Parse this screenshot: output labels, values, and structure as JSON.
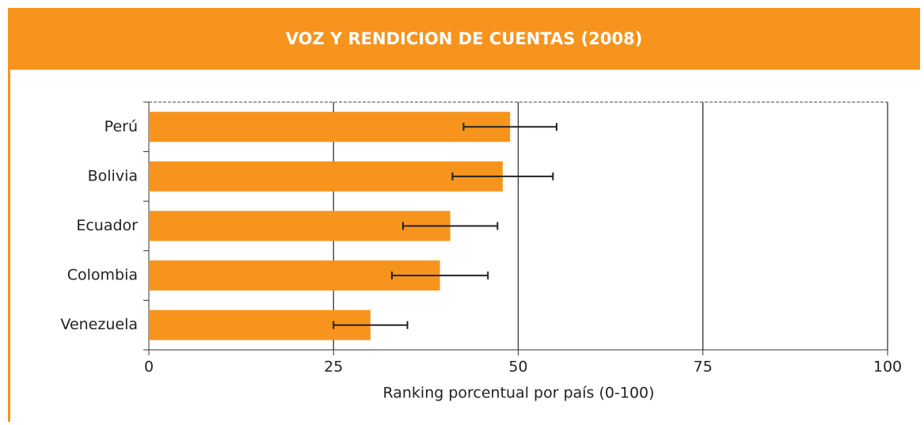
{
  "chart_data": {
    "type": "bar",
    "orientation": "horizontal",
    "title": "VOZ Y RENDICION DE CUENTAS (2008)",
    "x_label": "Ranking porcentual por país (0-100)",
    "categories": [
      "Perú",
      "Bolivia",
      "Ecuador",
      "Colombia",
      "Venezuela"
    ],
    "values": [
      48.9,
      47.9,
      40.8,
      39.4,
      30.0
    ],
    "errors": [
      6.3,
      6.8,
      6.4,
      6.5,
      5.0
    ],
    "color": "#f7941d",
    "xlim": [
      0,
      100
    ],
    "xticks": [
      0,
      25,
      50,
      75,
      100
    ],
    "grid": true
  }
}
